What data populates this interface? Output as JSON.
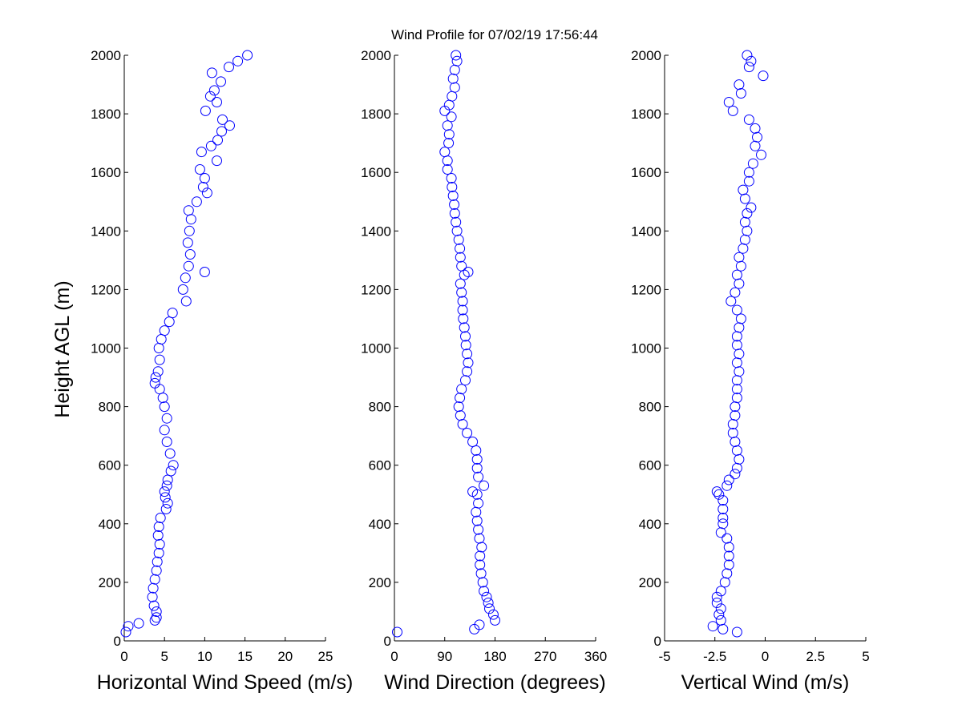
{
  "chart_data": {
    "type": "scatter",
    "title": "Wind Profile for  07/02/19 17:56:44",
    "ylabel": "Height AGL (m)",
    "ylim": [
      0,
      2000
    ],
    "yticks": [
      "0",
      "200",
      "400",
      "600",
      "800",
      "1000",
      "1200",
      "1400",
      "1600",
      "1800",
      "2000"
    ],
    "grid": false,
    "marker": "circle",
    "marker_color": "#0000ff",
    "panels": [
      {
        "id": "speed",
        "xlabel": "Horizontal Wind Speed (m/s)",
        "xlim": [
          0,
          25
        ],
        "xticks": [
          0,
          5,
          10,
          15,
          20,
          25
        ],
        "xtick_labels": [
          "0",
          "5",
          "10",
          "15",
          "20",
          "25"
        ],
        "y": [
          30,
          50,
          60,
          70,
          80,
          100,
          120,
          150,
          180,
          210,
          240,
          270,
          300,
          330,
          360,
          390,
          420,
          450,
          470,
          490,
          510,
          530,
          550,
          580,
          600,
          640,
          680,
          720,
          760,
          800,
          830,
          860,
          880,
          900,
          920,
          960,
          1000,
          1030,
          1060,
          1090,
          1120,
          1160,
          1200,
          1240,
          1260,
          1280,
          1320,
          1360,
          1400,
          1440,
          1470,
          1500,
          1530,
          1550,
          1580,
          1610,
          1640,
          1670,
          1690,
          1710,
          1740,
          1760,
          1780,
          1810,
          1840,
          1860,
          1880,
          1910,
          1940,
          1960,
          1980,
          2000
        ],
        "x": [
          0.2,
          0.5,
          1.8,
          3.8,
          4.0,
          4.0,
          3.7,
          3.5,
          3.6,
          3.8,
          4.0,
          4.1,
          4.3,
          4.4,
          4.2,
          4.3,
          4.5,
          5.2,
          5.4,
          5.1,
          5.0,
          5.3,
          5.4,
          5.8,
          6.1,
          5.7,
          5.3,
          5.0,
          5.3,
          5.0,
          4.8,
          4.4,
          3.8,
          3.9,
          4.2,
          4.4,
          4.3,
          4.6,
          5.0,
          5.6,
          6.0,
          7.7,
          7.3,
          7.6,
          10.0,
          8.0,
          8.2,
          7.9,
          8.1,
          8.3,
          8.0,
          9.0,
          10.3,
          9.8,
          10.0,
          9.4,
          11.5,
          9.6,
          10.8,
          11.6,
          12.1,
          13.1,
          12.2,
          10.1,
          11.5,
          10.7,
          11.2,
          12.0,
          10.9,
          13.0,
          14.1,
          15.3
        ]
      },
      {
        "id": "direction",
        "xlabel": "Wind Direction (degrees)",
        "xlim": [
          0,
          360
        ],
        "xticks": [
          0,
          90,
          180,
          270,
          360
        ],
        "xtick_labels": [
          "0",
          "90",
          "180",
          "270",
          "360"
        ],
        "y": [
          30,
          40,
          55,
          70,
          90,
          110,
          130,
          150,
          170,
          200,
          230,
          260,
          290,
          320,
          350,
          380,
          410,
          440,
          470,
          500,
          510,
          530,
          560,
          590,
          620,
          650,
          680,
          710,
          740,
          770,
          800,
          830,
          860,
          890,
          920,
          950,
          980,
          1010,
          1040,
          1070,
          1100,
          1130,
          1160,
          1190,
          1220,
          1250,
          1260,
          1280,
          1310,
          1340,
          1370,
          1400,
          1430,
          1460,
          1490,
          1520,
          1550,
          1580,
          1610,
          1640,
          1670,
          1700,
          1730,
          1760,
          1790,
          1810,
          1830,
          1860,
          1890,
          1920,
          1950,
          1980,
          2000
        ],
        "x": [
          5,
          143,
          152,
          180,
          177,
          170,
          168,
          165,
          160,
          158,
          155,
          153,
          153,
          156,
          152,
          150,
          148,
          146,
          150,
          148,
          140,
          160,
          150,
          148,
          148,
          146,
          140,
          130,
          122,
          118,
          115,
          117,
          120,
          127,
          130,
          132,
          130,
          128,
          127,
          125,
          123,
          122,
          122,
          120,
          118,
          125,
          132,
          120,
          118,
          117,
          115,
          112,
          110,
          108,
          107,
          105,
          103,
          102,
          95,
          95,
          90,
          97,
          98,
          95,
          102,
          90,
          98,
          103,
          108,
          105,
          108,
          112,
          110
        ]
      },
      {
        "id": "vertical",
        "xlabel": "Vertical Wind (m/s)",
        "xlim": [
          -5,
          5
        ],
        "xticks": [
          -5,
          -2.5,
          0,
          2.5,
          5
        ],
        "xtick_labels": [
          "-5",
          "-2.5",
          "0",
          "2.5",
          "5"
        ],
        "y": [
          30,
          40,
          50,
          70,
          90,
          110,
          130,
          150,
          170,
          200,
          230,
          260,
          290,
          320,
          350,
          370,
          400,
          420,
          450,
          480,
          500,
          510,
          530,
          550,
          570,
          590,
          620,
          650,
          680,
          710,
          740,
          770,
          800,
          830,
          860,
          890,
          920,
          950,
          980,
          1010,
          1040,
          1070,
          1100,
          1130,
          1160,
          1190,
          1220,
          1250,
          1280,
          1310,
          1340,
          1370,
          1400,
          1430,
          1460,
          1480,
          1510,
          1540,
          1570,
          1600,
          1630,
          1660,
          1690,
          1720,
          1750,
          1780,
          1810,
          1840,
          1870,
          1900,
          1930,
          1960,
          1980,
          2000
        ],
        "x": [
          -1.4,
          -2.1,
          -2.6,
          -2.2,
          -2.3,
          -2.2,
          -2.4,
          -2.4,
          -2.2,
          -2.0,
          -1.9,
          -1.8,
          -1.8,
          -1.8,
          -1.9,
          -2.2,
          -2.1,
          -2.1,
          -2.1,
          -2.1,
          -2.3,
          -2.4,
          -1.9,
          -1.8,
          -1.5,
          -1.4,
          -1.3,
          -1.4,
          -1.5,
          -1.6,
          -1.6,
          -1.5,
          -1.5,
          -1.4,
          -1.4,
          -1.4,
          -1.3,
          -1.4,
          -1.3,
          -1.4,
          -1.4,
          -1.3,
          -1.2,
          -1.4,
          -1.7,
          -1.5,
          -1.3,
          -1.4,
          -1.2,
          -1.3,
          -1.1,
          -1.0,
          -0.9,
          -1.0,
          -0.9,
          -0.7,
          -1.0,
          -1.1,
          -0.8,
          -0.8,
          -0.6,
          -0.2,
          -0.5,
          -0.4,
          -0.5,
          -0.8,
          -1.6,
          -1.8,
          -1.2,
          -1.3,
          -0.1,
          -0.8,
          -0.7,
          -0.9
        ]
      }
    ]
  }
}
